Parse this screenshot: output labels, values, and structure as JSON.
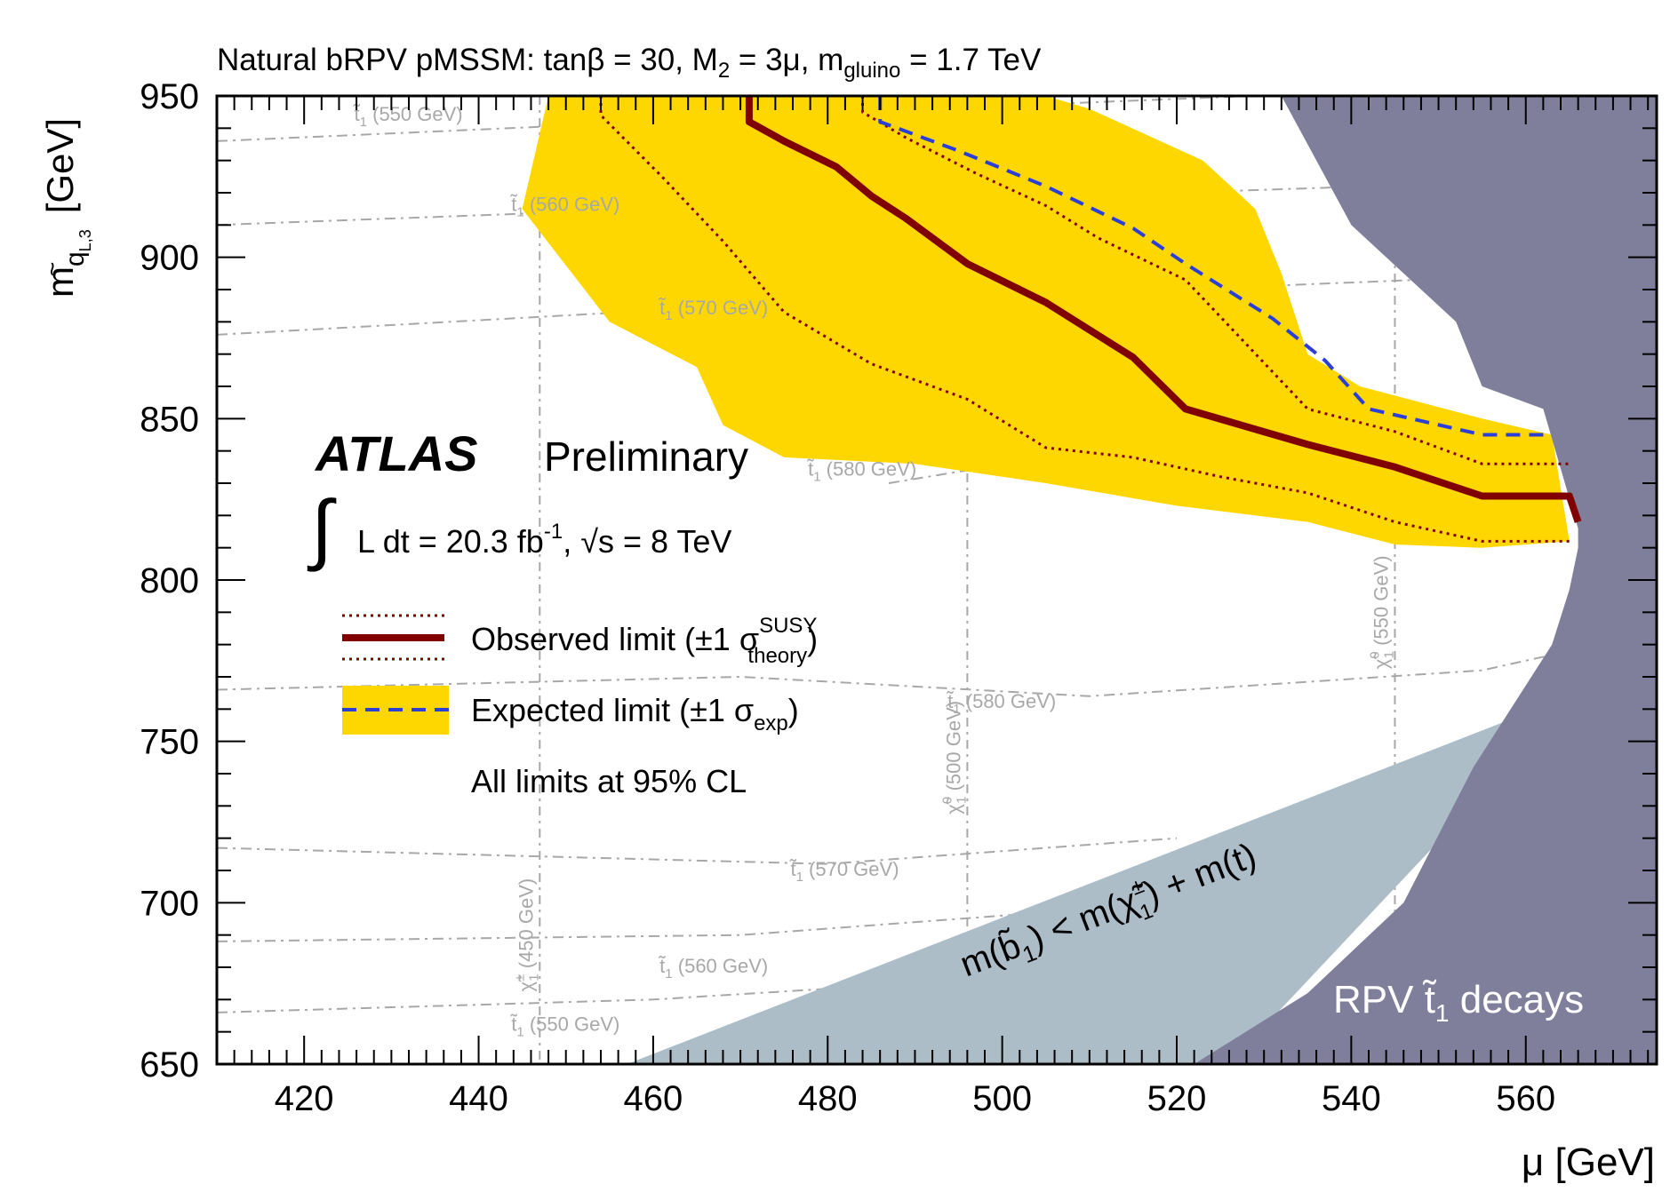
{
  "chart_data": {
    "type": "area",
    "title": "Natural bRPV pMSSM: tanβ = 30, M",
    "title_parts": {
      "sub2": "2",
      "mid": " = 3μ, m",
      "sub_gluino": "gluino",
      "end": " = 1.7 TeV"
    },
    "xlabel": "μ [GeV]",
    "ylabel": {
      "m": "m",
      "tilde": "~",
      "q": "q",
      "sub": "L,3",
      "unit": "[GeV]"
    },
    "xlim": [
      410,
      575
    ],
    "ylim": [
      650,
      950
    ],
    "xticks": [
      "420",
      "440",
      "460",
      "480",
      "500",
      "520",
      "540",
      "560"
    ],
    "yticks": [
      "650",
      "700",
      "750",
      "800",
      "850",
      "900",
      "950"
    ],
    "colors": {
      "expected_band": "#ffd700",
      "observed": "#800000",
      "expected": "#2b3fd8",
      "excl_b1": "#adbdc8",
      "excl_rpv": "#7f7f9c",
      "contours": "#a8a8a8"
    },
    "expected_band": [
      [
        448,
        950
      ],
      [
        479,
        950
      ],
      [
        491,
        950
      ],
      [
        505,
        950
      ],
      [
        510,
        946
      ],
      [
        523,
        930
      ],
      [
        529,
        915
      ],
      [
        532,
        895
      ],
      [
        535,
        870
      ],
      [
        541,
        860
      ],
      [
        555,
        850
      ],
      [
        563,
        845
      ],
      [
        565,
        812
      ],
      [
        555,
        810
      ],
      [
        545,
        811
      ],
      [
        535,
        818
      ],
      [
        520,
        823
      ],
      [
        505,
        830
      ],
      [
        490,
        836
      ],
      [
        475,
        838
      ],
      [
        468,
        848
      ],
      [
        465,
        866
      ],
      [
        455,
        880
      ],
      [
        445,
        915
      ]
    ],
    "observed": [
      [
        471,
        950
      ],
      [
        471,
        942
      ],
      [
        475,
        936
      ],
      [
        481,
        928
      ],
      [
        485,
        919
      ],
      [
        489,
        912
      ],
      [
        496,
        898
      ],
      [
        505,
        886
      ],
      [
        515,
        869
      ],
      [
        521,
        853
      ],
      [
        535,
        842
      ],
      [
        545,
        835
      ],
      [
        555,
        826
      ],
      [
        565,
        826
      ],
      [
        566,
        818
      ]
    ],
    "observed_plus": [
      [
        484,
        950
      ],
      [
        484,
        945
      ],
      [
        489,
        937
      ],
      [
        497,
        926
      ],
      [
        505,
        916
      ],
      [
        511,
        906
      ],
      [
        521,
        893
      ],
      [
        535,
        853
      ],
      [
        545,
        846
      ],
      [
        555,
        836
      ],
      [
        565,
        836
      ]
    ],
    "observed_minus": [
      [
        454,
        950
      ],
      [
        454,
        944
      ],
      [
        461,
        925
      ],
      [
        468,
        905
      ],
      [
        475,
        883
      ],
      [
        485,
        867
      ],
      [
        496,
        856
      ],
      [
        505,
        841
      ],
      [
        515,
        838
      ],
      [
        525,
        832
      ],
      [
        535,
        827
      ],
      [
        545,
        818
      ],
      [
        555,
        812
      ],
      [
        565,
        812
      ]
    ],
    "expected": [
      [
        486,
        950
      ],
      [
        486,
        942
      ],
      [
        495,
        933
      ],
      [
        505,
        922
      ],
      [
        515,
        909
      ],
      [
        521,
        898
      ],
      [
        531,
        881
      ],
      [
        537,
        868
      ],
      [
        542,
        853
      ],
      [
        555,
        845
      ],
      [
        563,
        845
      ]
    ],
    "exclusion_b1": {
      "label": "m(b̃",
      "label_parts": {
        "sub1": "1",
        "mid": ") < m(χ̃",
        "sup": "±",
        "sub2": "1",
        "end": ") + m(t)"
      },
      "points": [
        [
          457,
          650
        ],
        [
          526,
          650
        ],
        [
          566,
          765
        ]
      ]
    },
    "exclusion_rpv": {
      "label": "RPV t̃",
      "label_sub": "1",
      "label_end": " decays",
      "points": [
        [
          532,
          950
        ],
        [
          575,
          950
        ],
        [
          575,
          650
        ],
        [
          522,
          650
        ],
        [
          535,
          672
        ],
        [
          546,
          700
        ],
        [
          554,
          742
        ],
        [
          563,
          780
        ],
        [
          565,
          797
        ],
        [
          566,
          810
        ],
        [
          566,
          816
        ],
        [
          562,
          853
        ],
        [
          555,
          860
        ],
        [
          552,
          880
        ],
        [
          540,
          910
        ]
      ]
    },
    "stop_contours": [
      {
        "label": "t̃",
        "sub": "1",
        "mass": " (550 GeV)",
        "points": [
          [
            410,
            936
          ],
          [
            460,
            942
          ],
          [
            510,
            948
          ],
          [
            575,
            955
          ]
        ]
      },
      {
        "label": "t̃",
        "sub": "1",
        "mass": " (560 GeV)",
        "points": [
          [
            410,
            910
          ],
          [
            470,
            916
          ],
          [
            520,
            920
          ],
          [
            575,
            925
          ]
        ]
      },
      {
        "label": "t̃",
        "sub": "1",
        "mass": " (570 GeV)",
        "points": [
          [
            410,
            876
          ],
          [
            470,
            885
          ],
          [
            520,
            890
          ],
          [
            575,
            896
          ]
        ]
      },
      {
        "label": "t̃",
        "sub": "1",
        "mass": " (580 GeV)",
        "points": [
          [
            487,
            830
          ],
          [
            505,
            838
          ],
          [
            540,
            840
          ],
          [
            575,
            840
          ]
        ]
      },
      {
        "label": "t̃",
        "sub": "1",
        "mass": " (580 GeV)",
        "points": [
          [
            410,
            766
          ],
          [
            470,
            770
          ],
          [
            510,
            764
          ],
          [
            555,
            772
          ],
          [
            575,
            784
          ]
        ]
      },
      {
        "label": "t̃",
        "sub": "1",
        "mass": " (570 GeV)",
        "points": [
          [
            410,
            717
          ],
          [
            480,
            712
          ],
          [
            520,
            720
          ]
        ]
      },
      {
        "label": "t̃",
        "sub": "1",
        "mass": " (560 GeV)",
        "points": [
          [
            410,
            688
          ],
          [
            470,
            690
          ],
          [
            520,
            700
          ]
        ]
      },
      {
        "label": "t̃",
        "sub": "1",
        "mass": " (550 GeV)",
        "points": [
          [
            410,
            666
          ],
          [
            460,
            670
          ],
          [
            520,
            680
          ]
        ]
      }
    ],
    "chargino_contours": [
      {
        "label": "χ̃",
        "sup": "±",
        "sub": "1",
        "mass": " (450 GeV)",
        "x": 447
      },
      {
        "label": "χ̃",
        "sup": "0",
        "sub": "1",
        "mass": " (500 GeV)",
        "x": 496
      },
      {
        "label": "χ̃",
        "sup": "0",
        "sub": "1",
        "mass": " (550 GeV)",
        "x": 545
      }
    ],
    "legend": {
      "atlas": "ATLAS",
      "preliminary": "Preliminary",
      "lumi": "L dt = 20.3 fb",
      "lumi_sup": "-1",
      "energy": ",  √s = 8 TeV",
      "observed": "Observed limit (±1 σ",
      "observed_sup": "SUSY",
      "observed_sub": "theory",
      "observed_end": ")",
      "expected": "Expected limit (±1 σ",
      "expected_sub": "exp",
      "expected_end": ")",
      "cl": "All limits at 95% CL",
      "placement": "center-left"
    }
  }
}
